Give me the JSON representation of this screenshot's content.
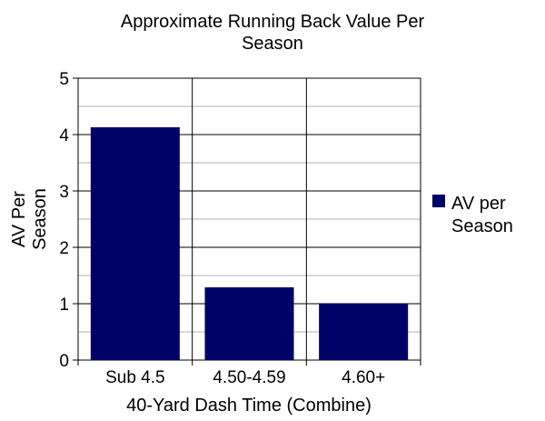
{
  "chart_data": {
    "type": "bar",
    "title_lines": [
      "Approximate Running Back Value Per",
      "Season"
    ],
    "xlabel": "40-Yard Dash Time (Combine)",
    "ylabel_lines": [
      "AV Per",
      "Season"
    ],
    "categories": [
      "Sub 4.5",
      "4.50-4.59",
      "4.60+"
    ],
    "series": [
      {
        "name": "AV per Season",
        "values": [
          4.13,
          1.29,
          1.0
        ],
        "color": "#000066"
      }
    ],
    "ylim": [
      0,
      5
    ],
    "yticks": [
      "0",
      "1",
      "2",
      "3",
      "4",
      "5"
    ],
    "grid": true,
    "legend": "right",
    "legend_lines": [
      "AV per",
      "Season"
    ]
  }
}
